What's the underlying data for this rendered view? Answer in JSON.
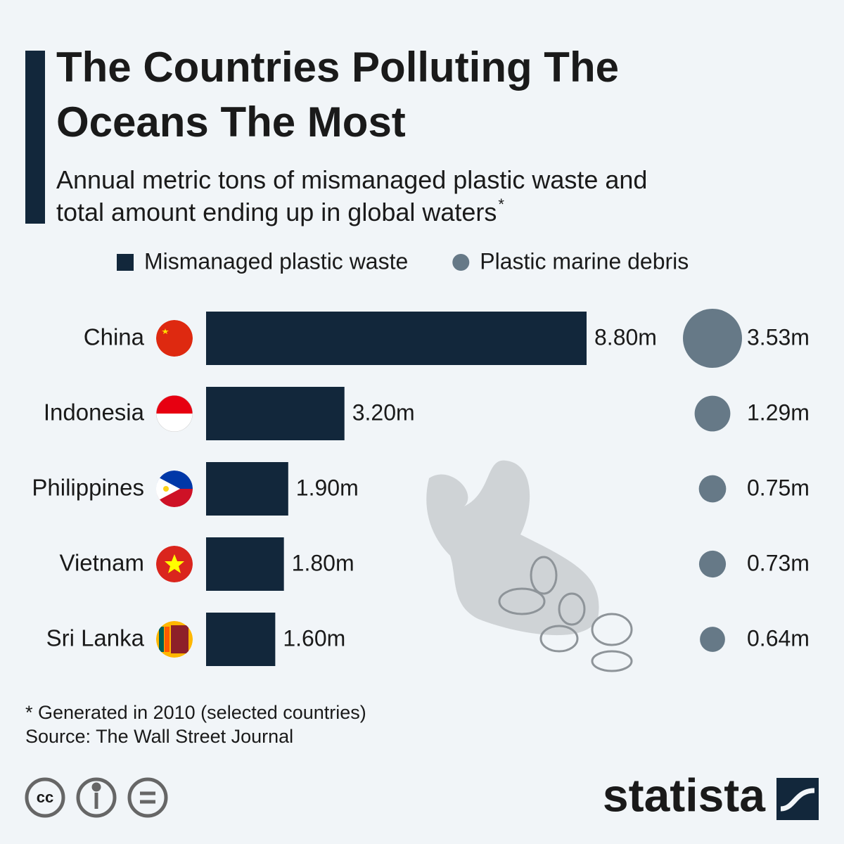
{
  "chart_data": {
    "type": "bar",
    "title": "The Countries Polluting The Oceans The Most",
    "subtitle": "Annual metric tons of mismanaged plastic waste and total amount ending up in global waters",
    "subtitle_marker": "*",
    "categories": [
      "China",
      "Indonesia",
      "Philippines",
      "Vietnam",
      "Sri Lanka"
    ],
    "series": [
      {
        "name": "Mismanaged plastic waste",
        "color": "#12273b",
        "values": [
          8.8,
          3.2,
          1.9,
          1.8,
          1.6
        ],
        "value_labels": [
          "8.80m",
          "3.20m",
          "1.90m",
          "1.80m",
          "1.60m"
        ]
      },
      {
        "name": "Plastic marine debris",
        "type": "bubble",
        "color": "#667987",
        "values": [
          3.53,
          1.29,
          0.75,
          0.73,
          0.64
        ],
        "value_labels": [
          "3.53m",
          "1.29m",
          "0.75m",
          "0.73m",
          "0.64m"
        ]
      }
    ],
    "footnote": "* Generated in 2010 (selected countries)",
    "source": "Source: The Wall Street Journal",
    "license": "cc",
    "brand": "statista"
  }
}
